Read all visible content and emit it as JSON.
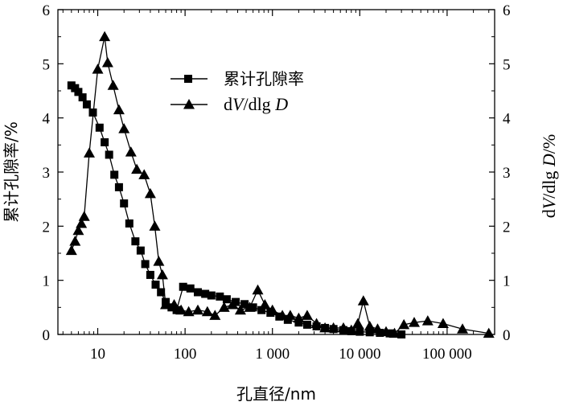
{
  "chart_data": {
    "type": "line",
    "x_scale": "log",
    "xlabel": "孔直径/nm",
    "ylabel_left": "累计孔隙率/%",
    "ylabel_right": "dV/dlg D/%",
    "ylabel_right_parts": [
      "d",
      "V",
      "/dlg ",
      "D",
      "/%"
    ],
    "xlim": [
      3.5,
      350000
    ],
    "ylim_left": [
      0,
      6
    ],
    "ylim_right": [
      0,
      6
    ],
    "x_ticks": [
      10,
      100,
      1000,
      10000,
      100000
    ],
    "x_tick_labels": [
      "10",
      "100",
      "1 000",
      "10 000",
      "100 000"
    ],
    "y_ticks": [
      0,
      1,
      2,
      3,
      4,
      5,
      6
    ],
    "y_tick_labels": [
      "0",
      "1",
      "2",
      "3",
      "4",
      "5",
      "6"
    ],
    "legend_position": "upper-middle",
    "series": [
      {
        "name": "累计孔隙率",
        "marker": "square",
        "axis": "left",
        "x": [
          5,
          5.5,
          6,
          6.7,
          7.5,
          8.8,
          10.5,
          12,
          13.5,
          15.5,
          17.5,
          20,
          23,
          27,
          31,
          35,
          40,
          46,
          53,
          60,
          70,
          80,
          95,
          115,
          140,
          170,
          200,
          250,
          300,
          380,
          480,
          600,
          750,
          950,
          1200,
          1500,
          2000,
          2500,
          3200,
          4000,
          5000,
          6500,
          8000,
          10000,
          13000,
          17000,
          22000,
          30000
        ],
        "y": [
          4.6,
          4.55,
          4.48,
          4.38,
          4.25,
          4.1,
          3.82,
          3.55,
          3.32,
          2.95,
          2.72,
          2.42,
          2.05,
          1.72,
          1.55,
          1.3,
          1.1,
          0.92,
          0.78,
          0.6,
          0.5,
          0.45,
          0.88,
          0.85,
          0.78,
          0.75,
          0.72,
          0.7,
          0.65,
          0.6,
          0.56,
          0.5,
          0.45,
          0.4,
          0.33,
          0.27,
          0.22,
          0.18,
          0.15,
          0.12,
          0.1,
          0.08,
          0.06,
          0.05,
          0.04,
          0.03,
          0.02,
          0.0
        ]
      },
      {
        "name": "dV/dlg D",
        "name_parts": [
          "d",
          "V",
          "/dlg ",
          "D"
        ],
        "marker": "triangle",
        "axis": "right",
        "x": [
          5,
          5.5,
          6,
          6.5,
          7,
          8,
          10,
          12,
          13,
          15,
          17.5,
          20,
          24,
          28,
          34,
          40,
          45,
          50,
          55,
          60,
          75,
          90,
          110,
          140,
          180,
          220,
          280,
          350,
          430,
          550,
          680,
          820,
          1000,
          1300,
          1600,
          2000,
          2500,
          3200,
          4000,
          5000,
          6500,
          8000,
          9500,
          11000,
          13000,
          16000,
          20000,
          25000,
          32000,
          42000,
          60000,
          90000,
          150000,
          300000
        ],
        "y": [
          1.55,
          1.72,
          1.92,
          2.05,
          2.18,
          3.35,
          4.9,
          5.5,
          5.02,
          4.6,
          4.15,
          3.8,
          3.37,
          3.05,
          2.95,
          2.6,
          2.0,
          1.35,
          1.1,
          0.55,
          0.55,
          0.45,
          0.42,
          0.45,
          0.42,
          0.35,
          0.5,
          0.55,
          0.45,
          0.5,
          0.82,
          0.55,
          0.45,
          0.35,
          0.35,
          0.3,
          0.35,
          0.2,
          0.12,
          0.12,
          0.12,
          0.08,
          0.2,
          0.62,
          0.15,
          0.1,
          0.05,
          0.02,
          0.18,
          0.22,
          0.25,
          0.2,
          0.1,
          0.02
        ]
      }
    ]
  }
}
